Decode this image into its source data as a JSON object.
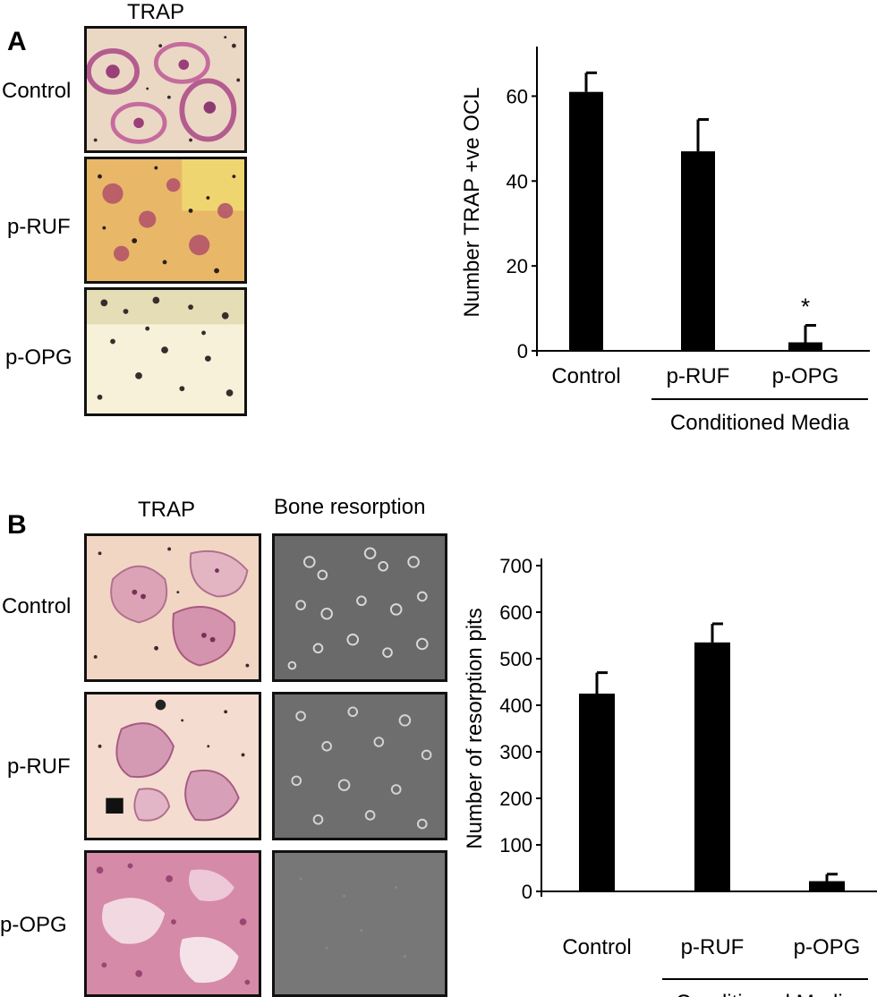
{
  "panel_a": {
    "letter": "A",
    "column_header": "TRAP",
    "rows": [
      {
        "label": "Control",
        "stain": "trap-multinucleated"
      },
      {
        "label": "p-RUF",
        "stain": "trap-yellow-orange"
      },
      {
        "label": "p-OPG",
        "stain": "trap-sparse-dark"
      }
    ]
  },
  "panel_b": {
    "letter": "B",
    "column_headers": [
      "TRAP",
      "Bone resorption"
    ],
    "rows": [
      {
        "label": "Control"
      },
      {
        "label": "p-RUF"
      },
      {
        "label": "p-OPG"
      }
    ]
  },
  "colors": {
    "bar": "#000000",
    "trap_pink": "#c86a9c",
    "trap_bg_light": "#f3ddd0",
    "trap_yellow": "#f2e28a",
    "sem_gray": "#6f6f6f"
  },
  "chart_data": [
    {
      "type": "bar",
      "panel": "A",
      "categories": [
        "Control",
        "p-RUF",
        "p-OPG"
      ],
      "values": [
        61,
        47,
        2
      ],
      "errors": [
        4.5,
        7.5,
        4
      ],
      "annotations": [
        {
          "category": "p-OPG",
          "text": "*"
        }
      ],
      "group_label": "Conditioned Media",
      "group_categories": [
        "p-RUF",
        "p-OPG"
      ],
      "ylabel": "Number  TRAP +ve OCL",
      "xlabel": "",
      "yticks": [
        0,
        20,
        40,
        60
      ],
      "ytick_labels": [
        "0",
        "20",
        "40",
        "60"
      ],
      "ylim": [
        0,
        70
      ]
    },
    {
      "type": "bar",
      "panel": "B",
      "categories": [
        "Control",
        "p-RUF",
        "p-OPG"
      ],
      "values": [
        425,
        535,
        22
      ],
      "errors": [
        45,
        40,
        15
      ],
      "group_label": "Conditioned Media",
      "group_categories": [
        "p-RUF",
        "p-OPG"
      ],
      "ylabel": "Number of resorption pits",
      "xlabel": "",
      "yticks": [
        0,
        100,
        200,
        300,
        400,
        500,
        600,
        700
      ],
      "ytick_labels": [
        "0",
        "100",
        "200",
        "300",
        "400",
        "500",
        "600",
        "700"
      ],
      "ylim": [
        0,
        700
      ]
    }
  ]
}
